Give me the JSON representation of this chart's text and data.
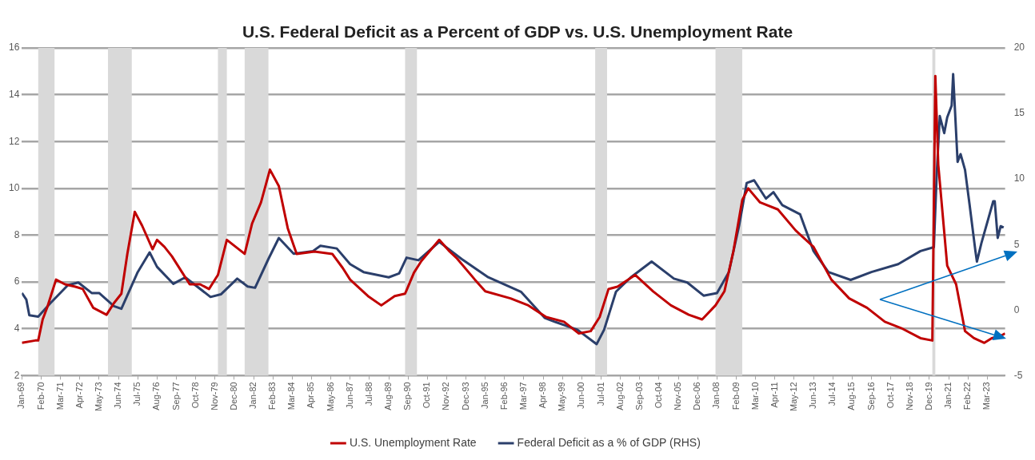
{
  "chart_data": {
    "type": "line",
    "title": "U.S. Federal Deficit as a Percent of GDP vs. U.S. Unemployment Rate",
    "xlim": [
      "1969-01",
      "2024-03"
    ],
    "xticks": [
      {
        "value": "1969-01",
        "label": "Jan-69"
      },
      {
        "value": "1970-02",
        "label": "Feb-70"
      },
      {
        "value": "1971-03",
        "label": "Mar-71"
      },
      {
        "value": "1972-04",
        "label": "Apr-72"
      },
      {
        "value": "1973-05",
        "label": "May-73"
      },
      {
        "value": "1974-06",
        "label": "Jun-74"
      },
      {
        "value": "1975-07",
        "label": "Jul-75"
      },
      {
        "value": "1976-08",
        "label": "Aug-76"
      },
      {
        "value": "1977-09",
        "label": "Sep-77"
      },
      {
        "value": "1978-10",
        "label": "Oct-78"
      },
      {
        "value": "1979-11",
        "label": "Nov-79"
      },
      {
        "value": "1980-12",
        "label": "Dec-80"
      },
      {
        "value": "1982-01",
        "label": "Jan-82"
      },
      {
        "value": "1983-02",
        "label": "Feb-83"
      },
      {
        "value": "1984-03",
        "label": "Mar-84"
      },
      {
        "value": "1985-04",
        "label": "Apr-85"
      },
      {
        "value": "1986-05",
        "label": "May-86"
      },
      {
        "value": "1987-06",
        "label": "Jun-87"
      },
      {
        "value": "1988-07",
        "label": "Jul-88"
      },
      {
        "value": "1989-08",
        "label": "Aug-89"
      },
      {
        "value": "1990-09",
        "label": "Sep-90"
      },
      {
        "value": "1991-10",
        "label": "Oct-91"
      },
      {
        "value": "1992-11",
        "label": "Nov-92"
      },
      {
        "value": "1993-12",
        "label": "Dec-93"
      },
      {
        "value": "1995-01",
        "label": "Jan-95"
      },
      {
        "value": "1996-02",
        "label": "Feb-96"
      },
      {
        "value": "1997-03",
        "label": "Mar-97"
      },
      {
        "value": "1998-04",
        "label": "Apr-98"
      },
      {
        "value": "1999-05",
        "label": "May-99"
      },
      {
        "value": "2000-06",
        "label": "Jun-00"
      },
      {
        "value": "2001-07",
        "label": "Jul-01"
      },
      {
        "value": "2002-08",
        "label": "Aug-02"
      },
      {
        "value": "2003-09",
        "label": "Sep-03"
      },
      {
        "value": "2004-10",
        "label": "Oct-04"
      },
      {
        "value": "2005-11",
        "label": "Nov-05"
      },
      {
        "value": "2006-12",
        "label": "Dec-06"
      },
      {
        "value": "2008-01",
        "label": "Jan-08"
      },
      {
        "value": "2009-02",
        "label": "Feb-09"
      },
      {
        "value": "2010-03",
        "label": "Mar-10"
      },
      {
        "value": "2011-04",
        "label": "Apr-11"
      },
      {
        "value": "2012-05",
        "label": "May-12"
      },
      {
        "value": "2013-06",
        "label": "Jun-13"
      },
      {
        "value": "2014-07",
        "label": "Jul-14"
      },
      {
        "value": "2015-08",
        "label": "Aug-15"
      },
      {
        "value": "2016-09",
        "label": "Sep-16"
      },
      {
        "value": "2017-10",
        "label": "Oct-17"
      },
      {
        "value": "2018-11",
        "label": "Nov-18"
      },
      {
        "value": "2019-12",
        "label": "Dec-19"
      },
      {
        "value": "2021-01",
        "label": "Jan-21"
      },
      {
        "value": "2022-02",
        "label": "Feb-22"
      },
      {
        "value": "2023-03",
        "label": "Mar-23"
      }
    ],
    "ylim": [
      2,
      16
    ],
    "yticks": [
      2,
      4,
      6,
      8,
      10,
      12,
      14,
      16
    ],
    "y2lim": [
      -5,
      20
    ],
    "y2ticks": [
      -5,
      0,
      5,
      10,
      15,
      20
    ],
    "grid": "y",
    "legend": "bottom",
    "marker": "none",
    "line_style": "solid",
    "bands": [
      {
        "axis": "x",
        "from": "1969-12",
        "to": "1970-11",
        "color": "#d9d9d9"
      },
      {
        "axis": "x",
        "from": "1973-11",
        "to": "1975-03",
        "color": "#d9d9d9"
      },
      {
        "axis": "x",
        "from": "1980-01",
        "to": "1980-07",
        "color": "#d9d9d9"
      },
      {
        "axis": "x",
        "from": "1981-07",
        "to": "1982-11",
        "color": "#d9d9d9"
      },
      {
        "axis": "x",
        "from": "1990-07",
        "to": "1991-03",
        "color": "#d9d9d9"
      },
      {
        "axis": "x",
        "from": "2001-03",
        "to": "2001-11",
        "color": "#d9d9d9"
      },
      {
        "axis": "x",
        "from": "2007-12",
        "to": "2009-06",
        "color": "#d9d9d9"
      },
      {
        "axis": "x",
        "from": "2020-02",
        "to": "2020-04",
        "color": "#d9d9d9"
      }
    ],
    "series": [
      {
        "name": "U.S. Unemployment Rate",
        "color": "#c00000",
        "x": [
          "1969-01",
          "1969-10",
          "1969-12",
          "1970-03",
          "1970-06",
          "1970-12",
          "1971-06",
          "1972-01",
          "1972-06",
          "1973-01",
          "1973-10",
          "1974-03",
          "1974-08",
          "1974-12",
          "1975-05",
          "1975-10",
          "1976-05",
          "1976-08",
          "1977-01",
          "1977-06",
          "1978-01",
          "1978-06",
          "1979-01",
          "1979-07",
          "1980-01",
          "1980-07",
          "1981-01",
          "1981-07",
          "1981-12",
          "1982-06",
          "1982-12",
          "1983-06",
          "1983-12",
          "1984-06",
          "1985-06",
          "1986-06",
          "1987-01",
          "1987-06",
          "1988-06",
          "1989-03",
          "1989-12",
          "1990-07",
          "1991-01",
          "1991-06",
          "1992-06",
          "1993-01",
          "1993-06",
          "1994-06",
          "1995-01",
          "1996-06",
          "1997-06",
          "1998-06",
          "1999-06",
          "2000-04",
          "2000-12",
          "2001-06",
          "2001-12",
          "2002-06",
          "2003-06",
          "2004-06",
          "2005-06",
          "2006-06",
          "2007-03",
          "2007-12",
          "2008-06",
          "2008-12",
          "2009-06",
          "2009-10",
          "2010-06",
          "2011-06",
          "2012-06",
          "2013-06",
          "2014-06",
          "2015-06",
          "2016-06",
          "2017-06",
          "2018-06",
          "2019-06",
          "2020-02",
          "2020-04",
          "2020-06",
          "2020-12",
          "2021-06",
          "2021-12",
          "2022-06",
          "2023-01",
          "2023-06",
          "2023-12",
          "2024-03"
        ],
        "values": [
          3.4,
          3.5,
          3.5,
          4.4,
          4.9,
          6.1,
          5.9,
          5.8,
          5.7,
          4.9,
          4.6,
          5.1,
          5.5,
          7.2,
          9.0,
          8.4,
          7.4,
          7.8,
          7.5,
          7.1,
          6.4,
          5.9,
          5.9,
          5.7,
          6.3,
          7.8,
          7.5,
          7.2,
          8.5,
          9.4,
          10.8,
          10.1,
          8.3,
          7.2,
          7.3,
          7.2,
          6.6,
          6.1,
          5.4,
          5.0,
          5.4,
          5.5,
          6.4,
          6.9,
          7.8,
          7.3,
          7.0,
          6.1,
          5.6,
          5.3,
          5.0,
          4.5,
          4.3,
          3.8,
          3.9,
          4.5,
          5.7,
          5.8,
          6.3,
          5.6,
          5.0,
          4.6,
          4.4,
          5.0,
          5.6,
          7.3,
          9.5,
          10.0,
          9.4,
          9.1,
          8.2,
          7.5,
          6.1,
          5.3,
          4.9,
          4.3,
          4.0,
          3.6,
          3.5,
          14.8,
          11.0,
          6.7,
          5.9,
          3.9,
          3.6,
          3.4,
          3.6,
          3.7,
          3.8
        ]
      },
      {
        "name": "Federal Deficit as a % of GDP (RHS)",
        "color": "#2b3f6b",
        "axis": "y2",
        "x": [
          "1969-01",
          "1969-04",
          "1969-06",
          "1969-12",
          "1970-08",
          "1971-08",
          "1972-03",
          "1972-12",
          "1973-05",
          "1974-03",
          "1974-08",
          "1975-07",
          "1976-03",
          "1976-08",
          "1977-07",
          "1978-03",
          "1979-08",
          "1980-03",
          "1981-02",
          "1981-09",
          "1982-02",
          "1982-11",
          "1983-06",
          "1984-04",
          "1985-05",
          "1985-10",
          "1986-09",
          "1987-06",
          "1988-03",
          "1989-08",
          "1990-03",
          "1990-08",
          "1991-04",
          "1992-06",
          "1993-09",
          "1995-03",
          "1997-01",
          "1998-05",
          "1998-12",
          "2000-03",
          "2001-04",
          "2001-09",
          "2002-05",
          "2003-03",
          "2004-05",
          "2005-08",
          "2006-05",
          "2007-04",
          "2008-01",
          "2008-09",
          "2009-04",
          "2009-09",
          "2010-02",
          "2010-10",
          "2011-03",
          "2011-09",
          "2012-09",
          "2013-06",
          "2014-04",
          "2015-07",
          "2016-09",
          "2018-03",
          "2019-06",
          "2020-03",
          "2020-05",
          "2020-07",
          "2020-10",
          "2020-12",
          "2021-03",
          "2021-04",
          "2021-07",
          "2021-09",
          "2021-12",
          "2022-03",
          "2022-07",
          "2022-08",
          "2022-11",
          "2023-07",
          "2023-08",
          "2023-10",
          "2023-12",
          "2024-02"
        ],
        "values": [
          1.3,
          0.8,
          -0.4,
          -0.5,
          0.5,
          1.9,
          2.1,
          1.3,
          1.3,
          0.3,
          0.1,
          2.9,
          4.4,
          3.3,
          2.0,
          2.5,
          1.0,
          1.2,
          2.4,
          1.8,
          1.7,
          3.9,
          5.5,
          4.3,
          4.5,
          4.9,
          4.7,
          3.5,
          2.9,
          2.5,
          2.8,
          4.0,
          3.8,
          5.2,
          3.9,
          2.5,
          1.4,
          -0.6,
          -0.9,
          -1.5,
          -2.6,
          -1.5,
          1.4,
          2.5,
          3.7,
          2.4,
          2.1,
          1.1,
          1.3,
          2.9,
          6.5,
          9.7,
          9.9,
          8.5,
          9.0,
          8.0,
          7.3,
          4.5,
          2.9,
          2.3,
          2.9,
          3.5,
          4.5,
          4.8,
          10.5,
          14.8,
          13.5,
          14.7,
          15.6,
          18.0,
          11.3,
          11.9,
          10.7,
          8.1,
          4.5,
          3.7,
          5.1,
          8.3,
          8.3,
          5.5,
          6.4,
          6.3
        ]
      }
    ]
  }
}
